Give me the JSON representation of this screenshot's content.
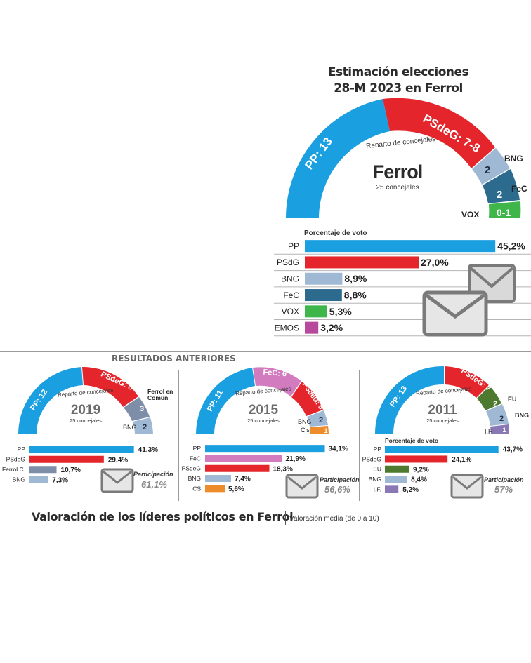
{
  "main": {
    "title_line1": "Estimación elecciones",
    "title_line2": "28-M  2023 en Ferrol",
    "city": "Ferrol",
    "seats_total": "25 concejales",
    "reparto": "Reparto de concejales",
    "arc_labels": {
      "pp": "PP: 13",
      "psdeg": "PSdeG: 7-8",
      "bng": "2",
      "fec": "2",
      "vox": "0-1"
    },
    "side_labels": {
      "bng": "BNG",
      "fec": "FeC",
      "vox": "VOX"
    },
    "vote_header": "Porcentaje de voto"
  },
  "previous": {
    "header": "RESULTADOS ANTERIORES",
    "y2019": {
      "year": "2019",
      "seats": "25 concejales",
      "reparto": "Reparto de concejales",
      "arc": {
        "pp": "PP: 12",
        "psdeg": "PSdeG: 8",
        "ferrol": "3",
        "bng": "2"
      },
      "side": {
        "ferrol": "Ferrol en Común",
        "bng": "BNG"
      },
      "participation_label": "Participación",
      "participation": "61,1%"
    },
    "y2015": {
      "year": "2015",
      "seats": "25 concejales",
      "reparto": "Reparto de concejales",
      "arc": {
        "pp": "PP: 11",
        "fec": "FeC: 6",
        "psdeg": "PSdeG: 5",
        "bng": "2",
        "cs": "1"
      },
      "side": {
        "bng": "BNG",
        "cs": "C's"
      },
      "participation_label": "Participación",
      "participation": "56,6%"
    },
    "y2011": {
      "year": "2011",
      "seats": "25 concejales",
      "reparto": "Reparto de concejales",
      "arc": {
        "pp": "PP: 13",
        "psdeg": "PSdeG: 7",
        "eu": "2",
        "bng": "2",
        "if": "1"
      },
      "side": {
        "eu": "EU",
        "bng": "BNG",
        "if": "I.F."
      },
      "vote_header": "Porcentaje de voto",
      "participation_label": "Participación",
      "participation": "57%"
    }
  },
  "footer": {
    "title": "Valoración de los líderes políticos en Ferrol",
    "subtitle": "Valoración media (de 0 a 10)"
  },
  "colors": {
    "pp": "#1a9fe0",
    "psdeg": "#e4262c",
    "bng": "#9fb9d4",
    "fec": "#2c6a8e",
    "vox": "#3fb64a",
    "podemos": "#b8489b",
    "ferrol": "#7f8ea8",
    "fec2015": "#d37bbf",
    "cs": "#ee8b2a",
    "eu": "#4d7a2e",
    "if": "#8a78b6"
  },
  "chart_data": [
    {
      "type": "bar",
      "title": "Porcentaje de voto",
      "categories": [
        "PP",
        "PSdG",
        "BNG",
        "FeC",
        "VOX",
        "PODEMOS"
      ],
      "values": [
        45.2,
        27.0,
        8.9,
        8.8,
        5.3,
        3.2
      ],
      "value_labels": [
        "45,2%",
        "27,0%",
        "8,9%",
        "8,8%",
        "5,3%",
        "3,2%"
      ],
      "colors": [
        "#1a9fe0",
        "#e4262c",
        "#9fb9d4",
        "#2c6a8e",
        "#3fb64a",
        "#b8489b"
      ]
    },
    {
      "type": "bar",
      "categories": [
        "PP",
        "PSdeG",
        "Ferrol C.",
        "BNG"
      ],
      "values": [
        41.3,
        29.4,
        10.7,
        7.3
      ],
      "value_labels": [
        "41,3%",
        "29,4%",
        "10,7%",
        "7,3%"
      ],
      "colors": [
        "#1a9fe0",
        "#e4262c",
        "#7f8ea8",
        "#9fb9d4"
      ]
    },
    {
      "type": "bar",
      "categories": [
        "PP",
        "FeC",
        "PSdeG",
        "BNG",
        "CS"
      ],
      "values": [
        34.1,
        21.9,
        18.3,
        7.4,
        5.6
      ],
      "value_labels": [
        "34,1%",
        "21,9%",
        "18,3%",
        "7,4%",
        "5,6%"
      ],
      "colors": [
        "#1a9fe0",
        "#d37bbf",
        "#e4262c",
        "#9fb9d4",
        "#ee8b2a"
      ]
    },
    {
      "type": "bar",
      "categories": [
        "PP",
        "PSdeG",
        "EU",
        "BNG",
        "I.F."
      ],
      "values": [
        43.7,
        24.1,
        9.2,
        8.4,
        5.2
      ],
      "value_labels": [
        "43,7%",
        "24,1%",
        "9,2%",
        "8,4%",
        "5,2%"
      ],
      "colors": [
        "#1a9fe0",
        "#e4262c",
        "#4d7a2e",
        "#9fb9d4",
        "#8a78b6"
      ]
    }
  ]
}
